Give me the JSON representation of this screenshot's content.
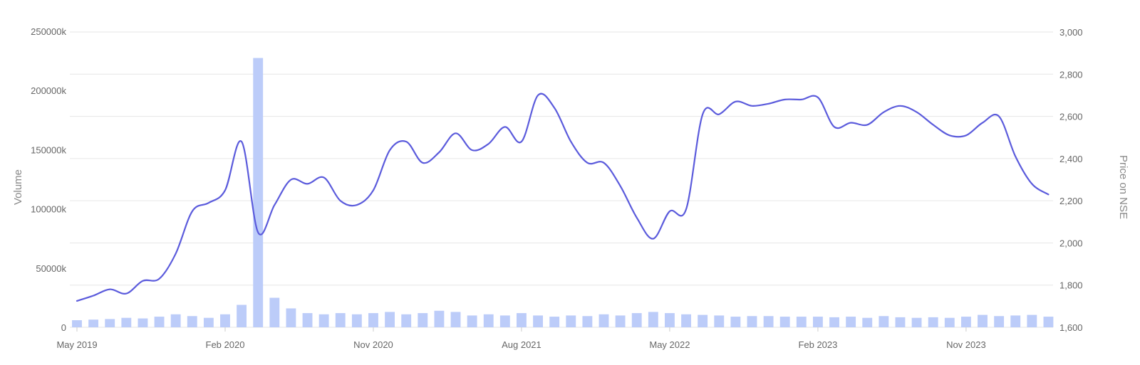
{
  "chart_data": {
    "type": "line",
    "title": "",
    "y_left_label": "Volume",
    "y_right_label": "Price on NSE",
    "y_left_ticks": [
      "0",
      "50000k",
      "100000k",
      "150000k",
      "200000k",
      "250000k"
    ],
    "y_left_range": [
      0,
      250000
    ],
    "y_left_unit": "k",
    "y_right_ticks": [
      "1,600",
      "1,800",
      "2,000",
      "2,200",
      "2,400",
      "2,600",
      "2,800",
      "3,000"
    ],
    "y_right_range": [
      1600,
      3000
    ],
    "x_ticks": [
      "May 2019",
      "Feb 2020",
      "Nov 2020",
      "Aug 2021",
      "May 2022",
      "Feb 2023",
      "Nov 2023"
    ],
    "x_tick_dates": [
      "2019-05",
      "2020-02",
      "2020-11",
      "2021-08",
      "2022-05",
      "2023-02",
      "2023-11"
    ],
    "grid": true,
    "legend": "none",
    "colors": {
      "price_line": "#5b5bdc",
      "volume_bar": "#bcccf9",
      "grid": "#e6e6e6"
    },
    "series": [
      {
        "name": "Price on NSE",
        "kind": "line",
        "axis": "right",
        "dates": [
          "2019-05",
          "2019-06",
          "2019-07",
          "2019-08",
          "2019-09",
          "2019-10",
          "2019-11",
          "2019-12",
          "2020-01",
          "2020-02",
          "2020-03",
          "2020-04",
          "2020-05",
          "2020-06",
          "2020-07",
          "2020-08",
          "2020-09",
          "2020-10",
          "2020-11",
          "2020-12",
          "2021-01",
          "2021-02",
          "2021-03",
          "2021-04",
          "2021-05",
          "2021-06",
          "2021-07",
          "2021-08",
          "2021-09",
          "2021-10",
          "2021-11",
          "2021-12",
          "2022-01",
          "2022-02",
          "2022-03",
          "2022-04",
          "2022-05",
          "2022-06",
          "2022-07",
          "2022-08",
          "2022-09",
          "2022-10",
          "2022-11",
          "2022-12",
          "2023-01",
          "2023-02",
          "2023-03",
          "2023-04",
          "2023-05",
          "2023-06",
          "2023-07",
          "2023-08",
          "2023-09",
          "2023-10",
          "2023-11",
          "2023-12",
          "2024-01",
          "2024-02",
          "2024-03",
          "2024-04"
        ],
        "values": [
          1725,
          1750,
          1780,
          1760,
          1820,
          1830,
          1950,
          2150,
          2190,
          2250,
          2480,
          2050,
          2180,
          2300,
          2280,
          2310,
          2200,
          2180,
          2250,
          2440,
          2480,
          2380,
          2430,
          2520,
          2440,
          2470,
          2550,
          2480,
          2700,
          2640,
          2480,
          2380,
          2380,
          2270,
          2120,
          2020,
          2150,
          2160,
          2610,
          2610,
          2670,
          2650,
          2660,
          2680,
          2680,
          2690,
          2550,
          2570,
          2560,
          2620,
          2650,
          2620,
          2560,
          2510,
          2510,
          2570,
          2600,
          2410,
          2280,
          2230
        ]
      },
      {
        "name": "Volume",
        "kind": "bar",
        "axis": "left",
        "dates": [
          "2019-05",
          "2019-06",
          "2019-07",
          "2019-08",
          "2019-09",
          "2019-10",
          "2019-11",
          "2019-12",
          "2020-01",
          "2020-02",
          "2020-03",
          "2020-04",
          "2020-05",
          "2020-06",
          "2020-07",
          "2020-08",
          "2020-09",
          "2020-10",
          "2020-11",
          "2020-12",
          "2021-01",
          "2021-02",
          "2021-03",
          "2021-04",
          "2021-05",
          "2021-06",
          "2021-07",
          "2021-08",
          "2021-09",
          "2021-10",
          "2021-11",
          "2021-12",
          "2022-01",
          "2022-02",
          "2022-03",
          "2022-04",
          "2022-05",
          "2022-06",
          "2022-07",
          "2022-08",
          "2022-09",
          "2022-10",
          "2022-11",
          "2022-12",
          "2023-01",
          "2023-02",
          "2023-03",
          "2023-04",
          "2023-05",
          "2023-06",
          "2023-07",
          "2023-08",
          "2023-09",
          "2023-10",
          "2023-11",
          "2023-12",
          "2024-01",
          "2024-02",
          "2024-03",
          "2024-04"
        ],
        "values": [
          6000,
          6500,
          7000,
          8000,
          7500,
          9000,
          11000,
          9500,
          8000,
          11000,
          19000,
          228000,
          25000,
          16000,
          12000,
          11000,
          12000,
          11000,
          12000,
          13000,
          11000,
          12000,
          14000,
          13000,
          10000,
          11000,
          10000,
          12000,
          10000,
          9000,
          10000,
          9500,
          11000,
          10000,
          12000,
          13000,
          12000,
          11000,
          10500,
          10000,
          9000,
          9500,
          9500,
          9000,
          9000,
          9000,
          8500,
          9000,
          8000,
          9500,
          8500,
          8000,
          8500,
          8000,
          9000,
          10500,
          9500,
          10000,
          10500,
          9000
        ]
      }
    ]
  }
}
